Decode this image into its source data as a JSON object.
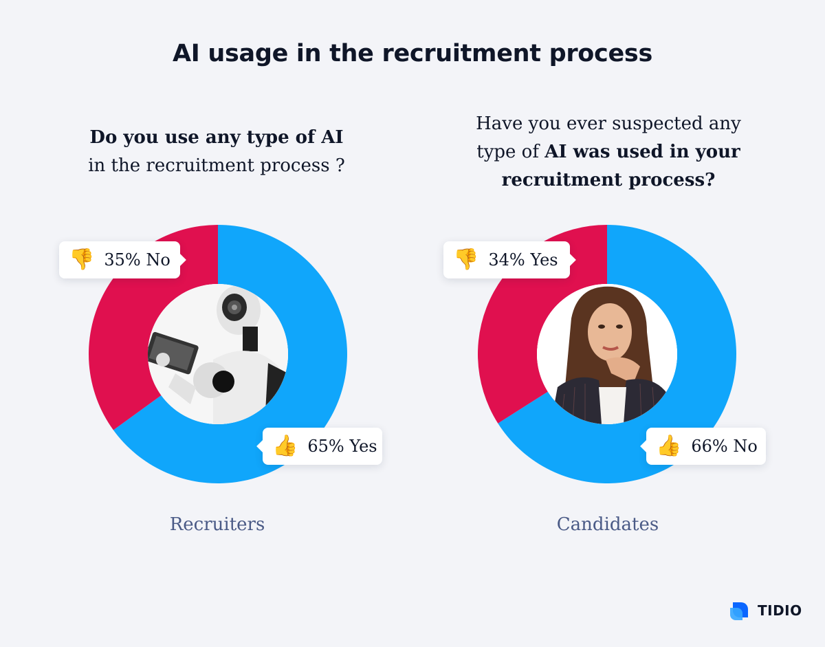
{
  "title": "AI usage in the recruitment process",
  "questions": {
    "recruiters": {
      "line1": "Do you use any type of AI",
      "line2": "in the recruitment process ?"
    },
    "candidates": {
      "line1": "Have you ever suspected any",
      "line2_plain": "type of ",
      "line2_bold": "AI was used in your",
      "line3_bold": "recruitment process?"
    }
  },
  "chart_data": [
    {
      "type": "pie",
      "variant": "donut",
      "group": "Recruiters",
      "slices": [
        {
          "label": "Yes",
          "value": 65,
          "color": "#10a6fb",
          "icon": "thumbs-up"
        },
        {
          "label": "No",
          "value": 35,
          "color": "#e0104f",
          "icon": "thumbs-down"
        }
      ],
      "callouts": {
        "no": "35% No",
        "yes": "65% Yes"
      },
      "center_image": "robot-with-tablet"
    },
    {
      "type": "pie",
      "variant": "donut",
      "group": "Candidates",
      "slices": [
        {
          "label": "No",
          "value": 66,
          "color": "#10a6fb",
          "icon": "thumbs-up"
        },
        {
          "label": "Yes",
          "value": 34,
          "color": "#e0104f",
          "icon": "thumbs-down"
        }
      ],
      "callouts": {
        "yes": "34% Yes",
        "no": "66% No"
      },
      "center_image": "thinking-woman"
    }
  ],
  "captions": {
    "recruiters": "Recruiters",
    "candidates": "Candidates"
  },
  "brand": {
    "name": "TIDIO",
    "color": "#0066ff"
  },
  "icons": {
    "down": "👎",
    "up": "👍"
  }
}
